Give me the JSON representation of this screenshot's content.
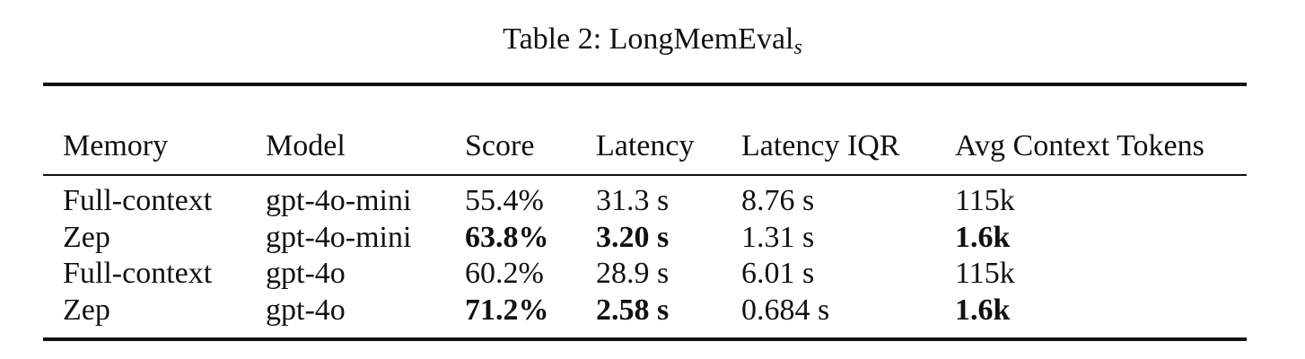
{
  "title": "Table 2: LongMemEval",
  "title_subscript": "s",
  "table": {
    "header": [
      "Memory",
      "Model",
      "Score",
      "Latency",
      "Latency IQR",
      "Avg Context Tokens"
    ],
    "rows": [
      [
        "Full-context",
        "gpt-4o-mini",
        "55.4%",
        "31.3 s",
        "8.76 s",
        "115k"
      ],
      [
        "Zep",
        "gpt-4o-mini",
        "63.8%",
        "3.20 s",
        "1.31 s",
        "1.6k"
      ],
      [
        "Full-context",
        "gpt-4o",
        "60.2%",
        "28.9 s",
        "6.01 s",
        "115k"
      ],
      [
        "Zep",
        "gpt-4o",
        "71.2%",
        "2.58 s",
        "0.684 s",
        "1.6k"
      ]
    ],
    "bold_cells": [
      [],
      [
        2,
        3,
        5
      ],
      [],
      [
        2,
        3,
        5
      ]
    ]
  }
}
